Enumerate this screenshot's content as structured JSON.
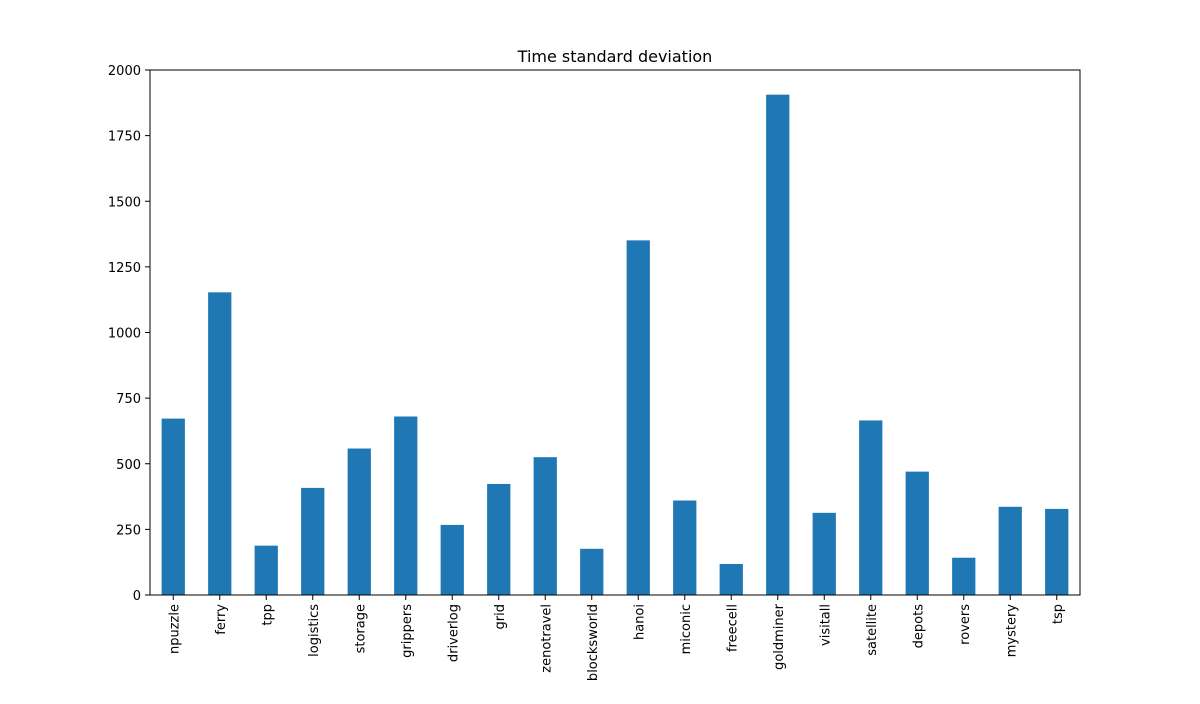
{
  "chart_data": {
    "type": "bar",
    "title": "Time standard deviation",
    "xlabel": "",
    "ylabel": "",
    "categories": [
      "npuzzle",
      "ferry",
      "tpp",
      "logistics",
      "storage",
      "grippers",
      "driverlog",
      "grid",
      "zenotravel",
      "blocksworld",
      "hanoi",
      "miconic",
      "freecell",
      "goldminer",
      "visitall",
      "satellite",
      "depots",
      "rovers",
      "mystery",
      "tsp"
    ],
    "values": [
      672,
      1153,
      188,
      408,
      558,
      680,
      267,
      423,
      525,
      176,
      1351,
      360,
      118,
      1906,
      313,
      665,
      470,
      142,
      336,
      328
    ],
    "ylim": [
      0,
      2000
    ],
    "yticks": [
      0,
      250,
      500,
      750,
      1000,
      1250,
      1500,
      1750,
      2000
    ],
    "bar_color": "#1f77b4",
    "grid": false,
    "legend": "none"
  }
}
